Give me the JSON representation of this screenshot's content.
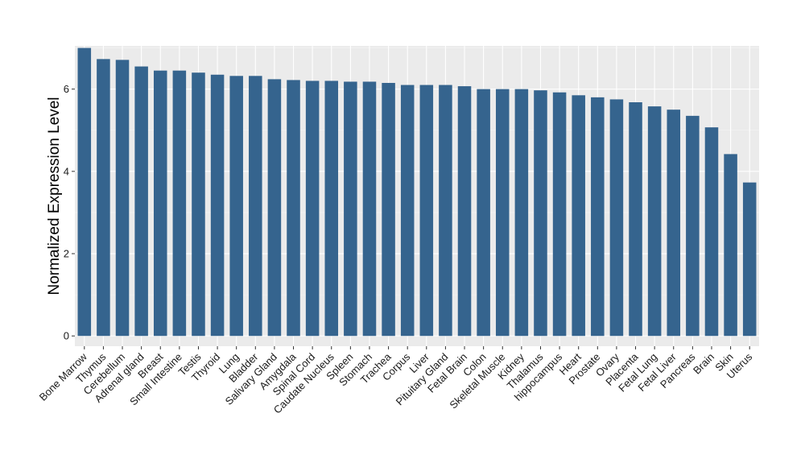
{
  "chart_data": {
    "type": "bar",
    "ylabel": "Normalized Expression Level",
    "xlabel": "",
    "ylim": [
      -0.25,
      7.05
    ],
    "yticks": [
      0,
      2,
      4,
      6
    ],
    "grid": true,
    "bar_color": "#35648e",
    "panel_color": "#ebebeb",
    "categories": [
      "Bone Marrow",
      "Thymus",
      "Cerebellum",
      "Adrenal gland",
      "Breast",
      "Small Intestine",
      "Testis",
      "Thyroid",
      "Lung",
      "Bladder",
      "Salivary Gland",
      "Amygdala",
      "Spinal Cord",
      "Caudate Nucleus",
      "Spleen",
      "Stomach",
      "Trachea",
      "Corpus",
      "Liver",
      "Pituitary Gland",
      "Fetal Brain",
      "Colon",
      "Skeletal Muscle",
      "Kidney",
      "Thalamus",
      "hippocampus",
      "Heart",
      "Prostate",
      "Ovary",
      "Placenta",
      "Fetal Lung",
      "Fetal Liver",
      "Pancreas",
      "Brain",
      "Skin",
      "Uterus"
    ],
    "values": [
      7.0,
      6.73,
      6.71,
      6.55,
      6.45,
      6.45,
      6.4,
      6.35,
      6.32,
      6.32,
      6.24,
      6.22,
      6.2,
      6.2,
      6.18,
      6.18,
      6.15,
      6.1,
      6.1,
      6.1,
      6.07,
      6.0,
      6.0,
      6.0,
      5.97,
      5.92,
      5.85,
      5.8,
      5.75,
      5.68,
      5.58,
      5.5,
      5.35,
      5.07,
      4.42,
      3.73
    ]
  }
}
